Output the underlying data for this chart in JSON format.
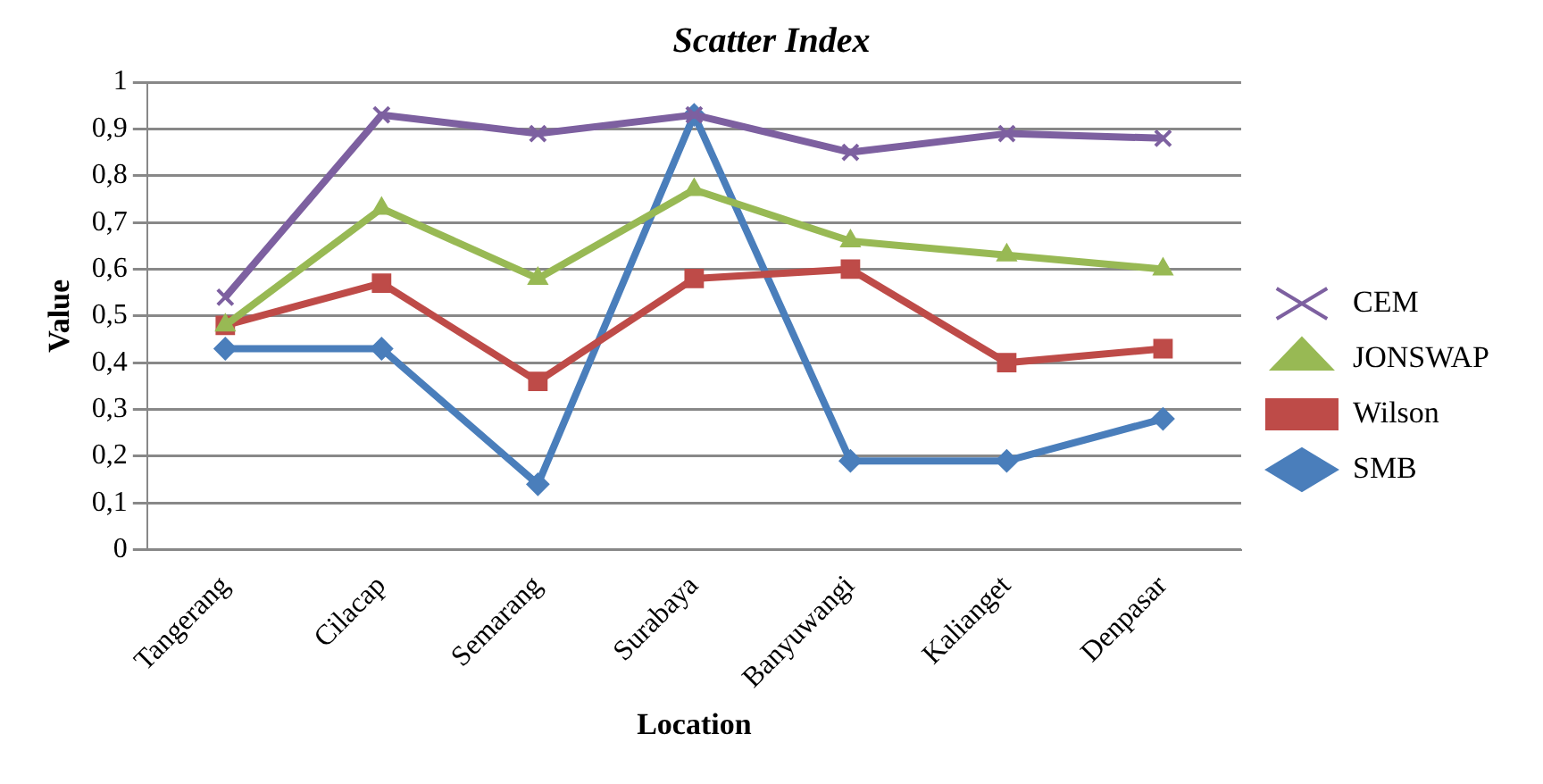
{
  "chart_data": {
    "type": "line",
    "title": "Scatter Index",
    "xlabel": "Location",
    "ylabel": "Value",
    "categories": [
      "Tangerang",
      "Cilacap",
      "Semarang",
      "Surabaya",
      "Banyuwangi",
      "Kalianget",
      "Denpasar"
    ],
    "series": [
      {
        "name": "SMB",
        "color": "#4a7ebb",
        "marker": "diamond",
        "values": [
          0.43,
          0.43,
          0.14,
          0.93,
          0.19,
          0.19,
          0.28
        ]
      },
      {
        "name": "Wilson",
        "color": "#be4b48",
        "marker": "square",
        "values": [
          0.48,
          0.57,
          0.36,
          0.58,
          0.6,
          0.4,
          0.43
        ]
      },
      {
        "name": "JONSWAP",
        "color": "#98b954",
        "marker": "triangle",
        "values": [
          0.48,
          0.73,
          0.58,
          0.77,
          0.66,
          0.63,
          0.6
        ]
      },
      {
        "name": "CEM",
        "color": "#7d60a0",
        "marker": "cross",
        "values": [
          0.54,
          0.93,
          0.89,
          0.93,
          0.85,
          0.89,
          0.88
        ]
      }
    ],
    "ylim": [
      0,
      1
    ],
    "yticks": [
      {
        "value": 0,
        "label": "0"
      },
      {
        "value": 0.1,
        "label": "0,1"
      },
      {
        "value": 0.2,
        "label": "0,2"
      },
      {
        "value": 0.3,
        "label": "0,3"
      },
      {
        "value": 0.4,
        "label": "0,4"
      },
      {
        "value": 0.5,
        "label": "0,5"
      },
      {
        "value": 0.6,
        "label": "0,6"
      },
      {
        "value": 0.7,
        "label": "0,7"
      },
      {
        "value": 0.8,
        "label": "0,8"
      },
      {
        "value": 0.9,
        "label": "0,9"
      },
      {
        "value": 1,
        "label": "1"
      }
    ],
    "grid": "y",
    "legend": "right",
    "line_style": "solid"
  }
}
